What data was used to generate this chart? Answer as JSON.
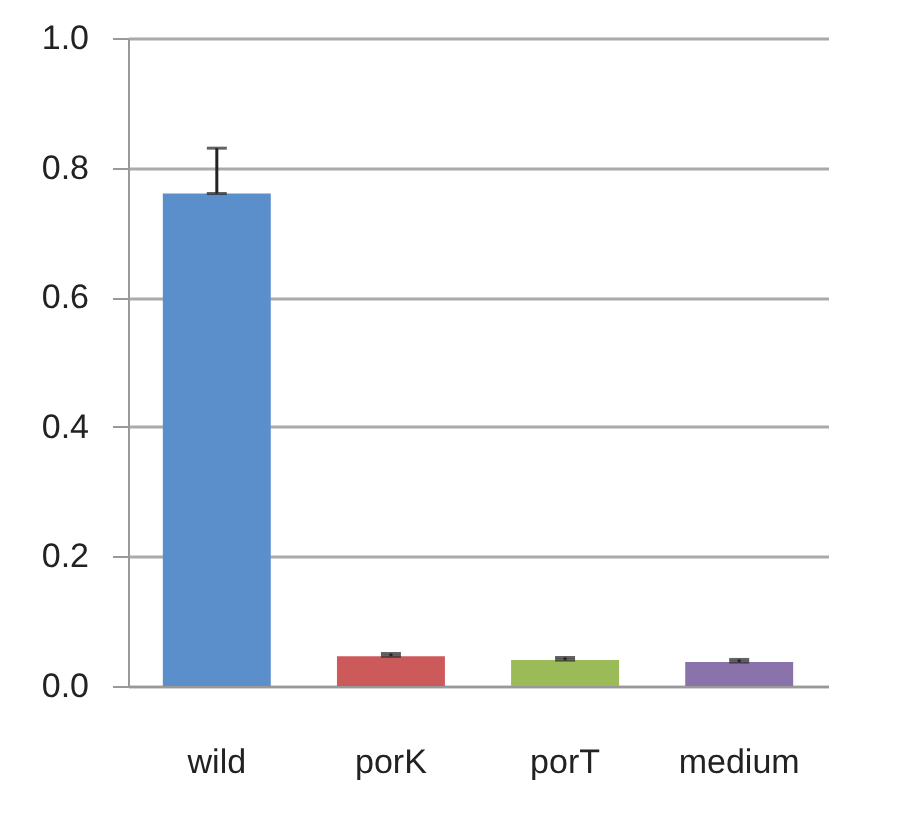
{
  "chart_data": {
    "type": "bar",
    "categories": [
      "wild",
      "porK",
      "porT",
      "medium"
    ],
    "values": [
      0.76,
      0.046,
      0.04,
      0.037
    ],
    "colors": [
      "#5b8fcc",
      "#cc5a5a",
      "#9bbb59",
      "#8a72ab"
    ],
    "errors": [
      [
        0.76,
        0.83
      ],
      [
        0.046,
        0.05
      ],
      [
        0.04,
        0.044
      ],
      [
        0.037,
        0.041
      ]
    ],
    "ylim": [
      0,
      1.0
    ],
    "yticks": [
      {
        "value": 0,
        "label": "0.0"
      },
      {
        "value": 0.2,
        "label": "0.2"
      },
      {
        "value": 0.4,
        "label": "0.4"
      },
      {
        "value": 0.6,
        "label": "0.6"
      },
      {
        "value": 0.8,
        "label": "0.8"
      },
      {
        "value": 1.0,
        "label": "1.0"
      }
    ],
    "grid": "y"
  }
}
